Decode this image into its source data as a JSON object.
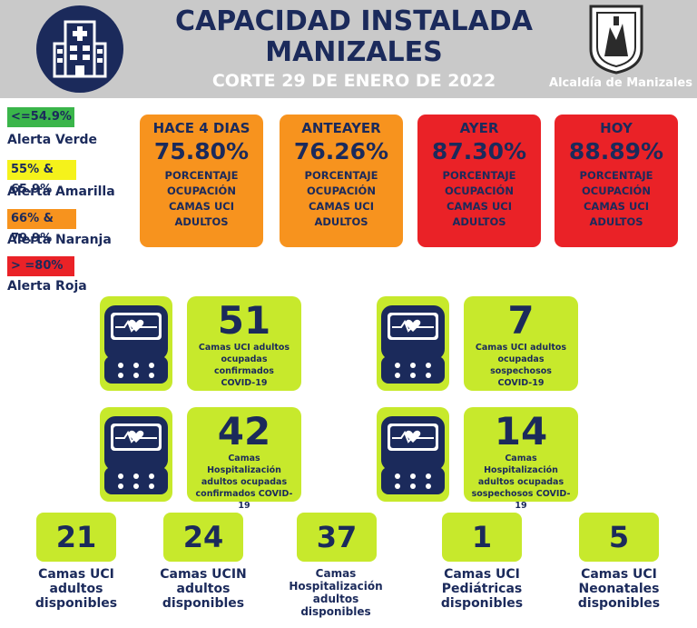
{
  "header": {
    "title_line1": "CAPACIDAD INSTALADA",
    "title_line2": "MANIZALES",
    "subtitle": "CORTE 29 DE ENERO DE 2022",
    "org": "Alcaldía de Manizales"
  },
  "legend": [
    {
      "range": "<=54.9%",
      "label": "Alerta Verde",
      "color": "#3ab54a"
    },
    {
      "range": "55% & 65.9%",
      "label": "Alerta Amarilla",
      "color": "#f5f21b"
    },
    {
      "range": "66% & 79.9%",
      "label": "Alerta Naranja",
      "color": "#f7931e"
    },
    {
      "range": "> =80%",
      "label": "Alerta Roja",
      "color": "#ea2227"
    }
  ],
  "cards": [
    {
      "title": "HACE 4 DIAS",
      "pct": "75.80%",
      "d1": "PORCENTAJE",
      "d2": "OCUPACIÓN",
      "d3": "CAMAS UCI",
      "d4": "ADULTOS",
      "color": "#f7931e"
    },
    {
      "title": "ANTEAYER",
      "pct": "76.26%",
      "d1": "PORCENTAJE",
      "d2": "OCUPACIÓN",
      "d3": "CAMAS UCI",
      "d4": "ADULTOS",
      "color": "#f7931e"
    },
    {
      "title": "AYER",
      "pct": "87.30%",
      "d1": "PORCENTAJE",
      "d2": "OCUPACIÓN",
      "d3": "CAMAS UCI",
      "d4": "ADULTOS",
      "color": "#ea2227"
    },
    {
      "title": "HOY",
      "pct": "88.89%",
      "d1": "PORCENTAJE",
      "d2": "OCUPACIÓN",
      "d3": "CAMAS UCI",
      "d4": "ADULTOS",
      "color": "#ea2227"
    }
  ],
  "stats": [
    {
      "num": "51",
      "l1": "Camas UCI adultos",
      "l2": "ocupadas confirmados",
      "l3": "COVID-19"
    },
    {
      "num": "7",
      "l1": "Camas UCI adultos",
      "l2": "ocupadas sospechosos",
      "l3": "COVID-19"
    },
    {
      "num": "42",
      "l1": "Camas  Hospitalización",
      "l2": "adultos ocupadas",
      "l3": "confirmados COVID-19"
    },
    {
      "num": "14",
      "l1": "Camas  Hospitalización",
      "l2": "adultos ocupadas",
      "l3": "sospechosos COVID-19"
    }
  ],
  "bottom": [
    {
      "num": "21",
      "l1": "Camas UCI",
      "l2": "adultos",
      "l3": "disponibles",
      "l4": ""
    },
    {
      "num": "24",
      "l1": "Camas UCIN",
      "l2": "adultos",
      "l3": "disponibles",
      "l4": ""
    },
    {
      "num": "37",
      "l1": "Camas",
      "l2": "Hospitalización",
      "l3": "adultos",
      "l4": "disponibles"
    },
    {
      "num": "1",
      "l1": "Camas  UCI",
      "l2": "Pediátricas",
      "l3": "disponibles",
      "l4": ""
    },
    {
      "num": "5",
      "l1": "Camas  UCI",
      "l2": "Neonatales",
      "l3": "disponibles",
      "l4": ""
    }
  ],
  "colors": {
    "navy": "#1b2a5b",
    "lime": "#c7e92c",
    "orange": "#f7931e",
    "red": "#ea2227",
    "header_gray": "#c9c9c9"
  },
  "icons": {
    "logo": "hospital-building-icon",
    "monitor": "heart-monitor-icon",
    "emblem": "city-shield-emblem"
  }
}
